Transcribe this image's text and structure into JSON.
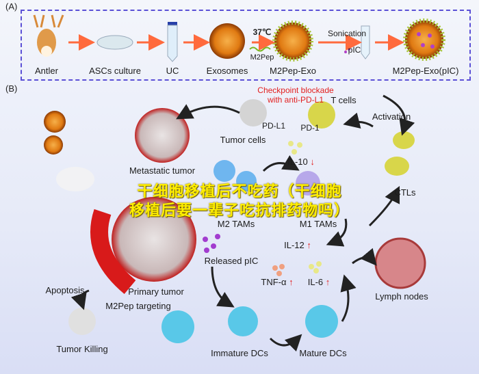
{
  "panel_a": {
    "tag": "(A)",
    "steps": [
      "Antler",
      "ASCs culture",
      "UC",
      "Exosomes",
      "M2Pep-Exo",
      "M2Pep-Exo(pIC)"
    ],
    "temperature": "37℃",
    "peptide": "M2Pep",
    "sonication": "Sonication",
    "payload": "pIC"
  },
  "panel_b": {
    "tag": "(B)",
    "checkpoint_line1": "Checkpoint blockade",
    "checkpoint_line2": "with anti-PD-L1",
    "t_cells": "T cells",
    "pd_l1": "PD-L1",
    "pd_1": "PD-1",
    "tumor_cells": "Tumor cells",
    "metastatic_tumor": "Metastatic tumor",
    "il10": "IL-10",
    "m2_cells": "M2 TAMs",
    "m1_cells": "M1 TAMs",
    "released_pic": "Released pIC",
    "il12": "IL-12",
    "tnf": "TNF-α",
    "il6": "IL-6",
    "lymph_nodes": "Lymph nodes",
    "activation": "Activation",
    "ctls": "CTLs",
    "apoptosis": "Apoptosis",
    "primary_tumor": "Primary tumor",
    "m2pep_targeting": "M2Pep targeting",
    "tumor_killing": "Tumor Killing",
    "immature_dcs": "Immature DCs",
    "mature_dcs": "Mature DCs",
    "arrow_down": "↓",
    "arrow_up": "↑"
  },
  "watermark": {
    "line1": "干细胞移植后不吃药（干细胞",
    "line2": "移植后要一辈子吃抗排药物吗）"
  },
  "colors": {
    "frame": "#5a4fd6",
    "highlight": "#e21e1e",
    "watermark": "#ffee00"
  }
}
